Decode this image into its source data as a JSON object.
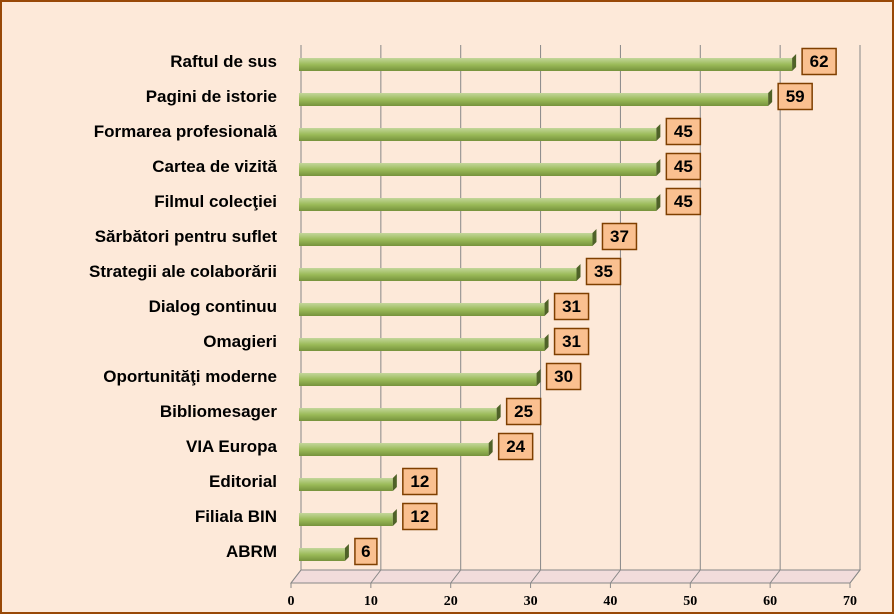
{
  "chart_data": {
    "type": "bar",
    "orientation": "horizontal",
    "categories": [
      "Raftul de sus",
      "Pagini de istorie",
      "Formarea profesională",
      "Cartea de vizită",
      "Filmul colecţiei",
      "Sărbători pentru suflet",
      "Strategii ale colaborării",
      "Dialog continuu",
      "Omagieri",
      "Oportunităţi moderne",
      "Bibliomesager",
      "VIA Europa",
      "Editorial",
      "Filiala BIN",
      "ABRM"
    ],
    "values": [
      62,
      59,
      45,
      45,
      45,
      37,
      35,
      31,
      31,
      30,
      25,
      24,
      12,
      12,
      6
    ],
    "color": "#9bbb59",
    "label_color": "#fac090",
    "xlim": [
      0,
      70
    ],
    "xticks": [
      0,
      10,
      20,
      30,
      40,
      50,
      60,
      70
    ],
    "grid": true
  }
}
